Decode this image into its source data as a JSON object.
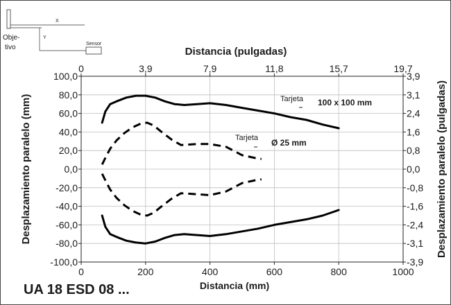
{
  "chart_data": {
    "type": "line",
    "title": "UA 18 ESD 08 ...",
    "xlabel": "Distancia (mm)",
    "ylabel": "Desplazamiento paralelo (mm)",
    "x2label": "Distancia (pulgadas)",
    "y2label": "Desplazamiento paralelo (pulgadas)",
    "xlim": [
      0,
      1000
    ],
    "ylim": [
      -100,
      100
    ],
    "xticks": [
      0,
      200,
      400,
      600,
      800,
      1000
    ],
    "yticks": [
      -100,
      -80,
      -60,
      -40,
      -20,
      0,
      20,
      40,
      60,
      80,
      100
    ],
    "x_tick_labels": [
      "0",
      "200",
      "400",
      "600",
      "800",
      "1000"
    ],
    "y_tick_labels": [
      "-100,0",
      "-80,0",
      "-60,0",
      "-40,0",
      "-20,0",
      "0,0",
      "20,0",
      "40,0",
      "60,0",
      "80,0",
      "100,0"
    ],
    "x2_tick_labels": [
      "0",
      "3,9",
      "7,9",
      "11,8",
      "15,7",
      "19,7"
    ],
    "y2_tick_labels": [
      "-3,9",
      "-3,1",
      "-2,4",
      "-1,6",
      "-0,8",
      "0,0",
      "0,8",
      "1,6",
      "2,4",
      "3,1",
      "3,9"
    ],
    "grid": true,
    "series": [
      {
        "target": "Tarjeta",
        "size": "100 x 100 mm",
        "style": "solid",
        "upper": [
          [
            65,
            50
          ],
          [
            75,
            62
          ],
          [
            90,
            70
          ],
          [
            110,
            73
          ],
          [
            140,
            77
          ],
          [
            170,
            79
          ],
          [
            200,
            79
          ],
          [
            230,
            77
          ],
          [
            260,
            73
          ],
          [
            290,
            70
          ],
          [
            320,
            69
          ],
          [
            360,
            70
          ],
          [
            400,
            71
          ],
          [
            450,
            69
          ],
          [
            500,
            66
          ],
          [
            550,
            63
          ],
          [
            600,
            60
          ],
          [
            650,
            56
          ],
          [
            700,
            53
          ],
          [
            750,
            48
          ],
          [
            800,
            44
          ]
        ],
        "lower": [
          [
            65,
            -50
          ],
          [
            75,
            -62
          ],
          [
            90,
            -70
          ],
          [
            110,
            -73
          ],
          [
            140,
            -77
          ],
          [
            170,
            -79
          ],
          [
            200,
            -80
          ],
          [
            230,
            -78
          ],
          [
            260,
            -74
          ],
          [
            290,
            -71
          ],
          [
            320,
            -70
          ],
          [
            360,
            -71
          ],
          [
            400,
            -72
          ],
          [
            450,
            -70
          ],
          [
            500,
            -67
          ],
          [
            550,
            -64
          ],
          [
            600,
            -60
          ],
          [
            650,
            -57
          ],
          [
            700,
            -54
          ],
          [
            750,
            -50
          ],
          [
            800,
            -44
          ]
        ]
      },
      {
        "target": "Tarjeta",
        "size": "Ø 25 mm",
        "style": "dashed",
        "upper": [
          [
            65,
            5
          ],
          [
            75,
            12
          ],
          [
            90,
            22
          ],
          [
            110,
            31
          ],
          [
            135,
            39
          ],
          [
            160,
            45
          ],
          [
            185,
            49
          ],
          [
            205,
            50
          ],
          [
            225,
            47
          ],
          [
            250,
            40
          ],
          [
            280,
            32
          ],
          [
            310,
            26
          ],
          [
            360,
            27
          ],
          [
            400,
            27
          ],
          [
            450,
            24
          ],
          [
            500,
            15
          ],
          [
            540,
            12
          ],
          [
            560,
            11
          ]
        ],
        "lower": [
          [
            65,
            -5
          ],
          [
            75,
            -12
          ],
          [
            90,
            -22
          ],
          [
            110,
            -31
          ],
          [
            135,
            -39
          ],
          [
            160,
            -45
          ],
          [
            185,
            -49
          ],
          [
            205,
            -50
          ],
          [
            225,
            -47
          ],
          [
            250,
            -40
          ],
          [
            280,
            -32
          ],
          [
            310,
            -26
          ],
          [
            360,
            -27
          ],
          [
            400,
            -28
          ],
          [
            450,
            -24
          ],
          [
            500,
            -15
          ],
          [
            540,
            -12
          ],
          [
            560,
            -11
          ]
        ]
      }
    ]
  },
  "schematic": {
    "x_label": "X",
    "y_label": "Y",
    "object_label_1": "Obje-",
    "object_label_2": "tivo",
    "sensor_label": "Sensor"
  }
}
